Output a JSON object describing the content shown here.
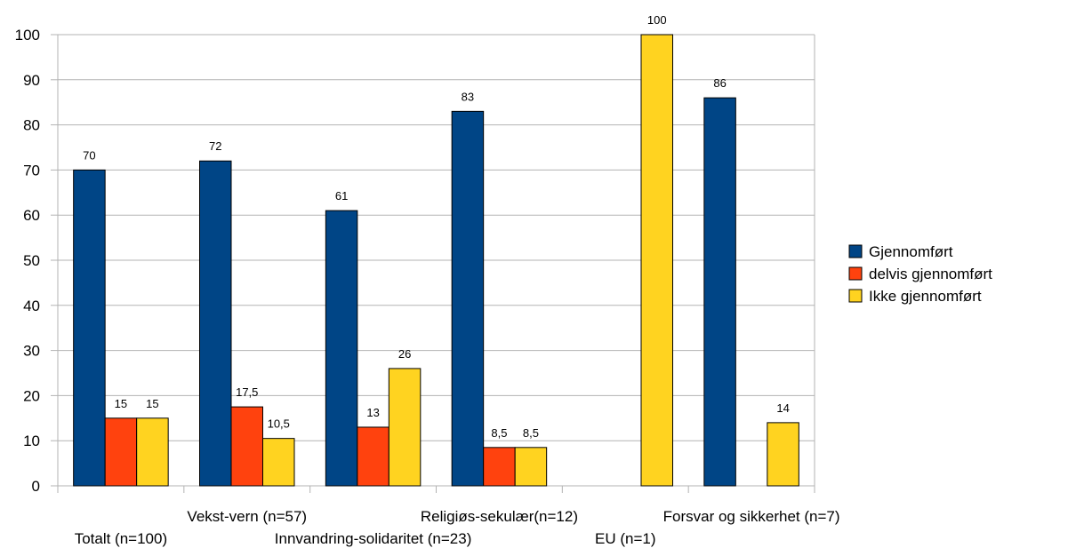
{
  "chart_data": {
    "type": "bar",
    "categories": [
      "Totalt (n=100)",
      "Vekst-vern (n=57)",
      "Innvandring-solidaritet (n=23)",
      "Religiøs-sekulær(n=12)",
      "EU (n=1)",
      "Forsvar og sikkerhet (n=7)"
    ],
    "series": [
      {
        "name": "Gjennomført",
        "color": "#004586",
        "values": [
          70,
          72,
          61,
          83,
          null,
          86
        ],
        "labels": [
          "70",
          "72",
          "61",
          "83",
          null,
          "86"
        ]
      },
      {
        "name": "delvis gjennomført",
        "color": "#ff420e",
        "values": [
          15,
          17.5,
          13,
          8.5,
          null,
          null
        ],
        "labels": [
          "15",
          "17,5",
          "13",
          "8,5",
          null,
          null
        ]
      },
      {
        "name": "Ikke gjennomført",
        "color": "#ffd320",
        "values": [
          15,
          10.5,
          26,
          8.5,
          100,
          14
        ],
        "labels": [
          "15",
          "10,5",
          "26",
          "8,5",
          "100",
          "14"
        ]
      }
    ],
    "ylim": [
      0,
      100
    ],
    "yticks": [
      0,
      10,
      20,
      30,
      40,
      50,
      60,
      70,
      80,
      90,
      100
    ],
    "grid": true,
    "legend_position": "right",
    "title": "",
    "xlabel": "",
    "ylabel": ""
  }
}
